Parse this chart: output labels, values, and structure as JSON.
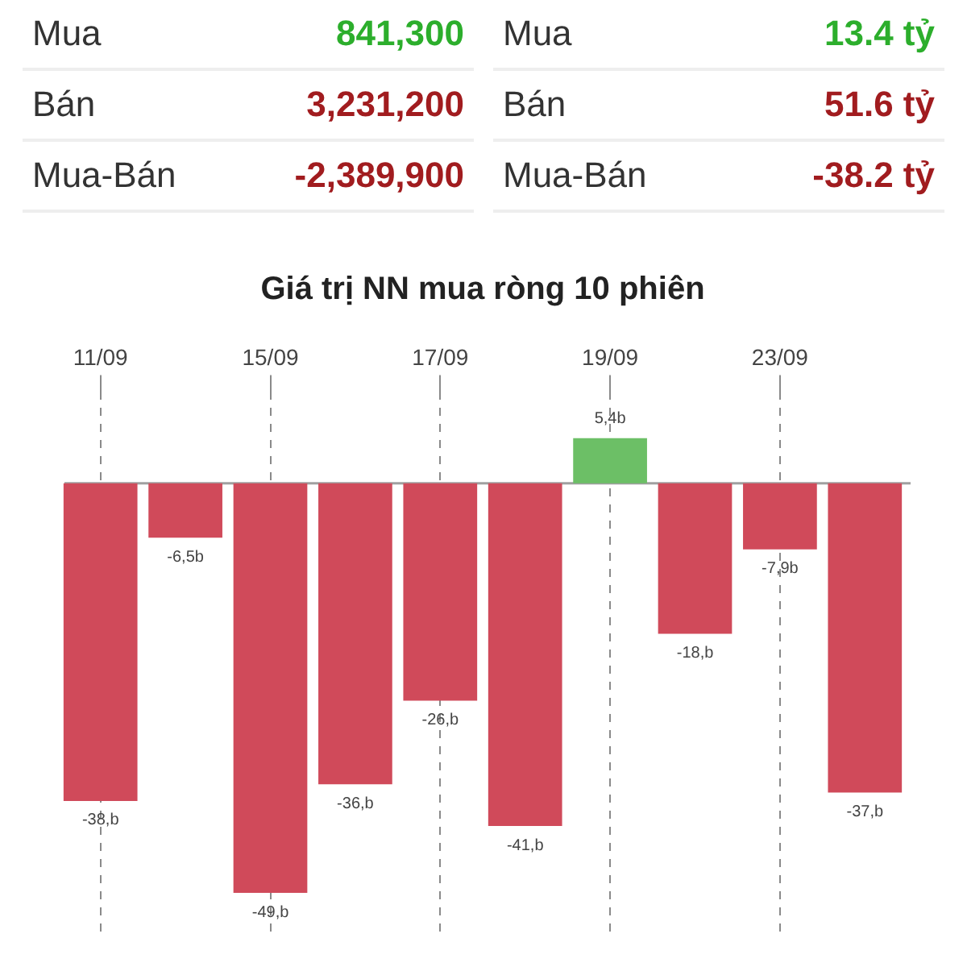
{
  "chart_data": [
    {
      "type": "other",
      "annotations": [
        "Mua",
        "841,300",
        "Mua",
        "13.4 tỷ",
        "Bán",
        "3,231,200",
        "Bán",
        "51.6 tỷ",
        "Mua-Bán",
        "-2,389,900",
        "Mua-Bán",
        "-38.2 tỷ"
      ],
      "colors": [
        "#333333",
        "#2cae2c",
        "#333333",
        "#2cae2c",
        "#333333",
        "#a11c1f",
        "#333333",
        "#a11c1f",
        "#333333",
        "#a11c1f",
        "#333333",
        "#a11c1f"
      ]
    },
    {
      "type": "bar",
      "title": "Giá trị NN mua ròng 10 phiên",
      "categories": [
        "11/09",
        null,
        "15/09",
        null,
        "17/09",
        null,
        "19/09",
        null,
        "23/09",
        null
      ],
      "values": [
        -38,
        -6.5,
        -49,
        -36,
        -26,
        -41,
        5.4,
        -18,
        -7.9,
        -37
      ],
      "colors": [
        "#d04a5a",
        "#d04a5a",
        "#d04a5a",
        "#d04a5a",
        "#d04a5a",
        "#d04a5a",
        "#6cbf66",
        "#d04a5a",
        "#d04a5a",
        "#d04a5a"
      ],
      "value_labels": [
        "-38,b",
        "-6,5b",
        "-49,b",
        "-36,b",
        "-26,b",
        "-41,b",
        "5,4b",
        "-18,b",
        "-7,9b",
        "-37,b"
      ],
      "ylim": [
        -54,
        11
      ],
      "grid": "x",
      "tick_labels": "x",
      "legend": false,
      "ref_lines": [
        {
          "axis": "y",
          "value": 0,
          "color": "#a0a0a0"
        }
      ]
    }
  ]
}
